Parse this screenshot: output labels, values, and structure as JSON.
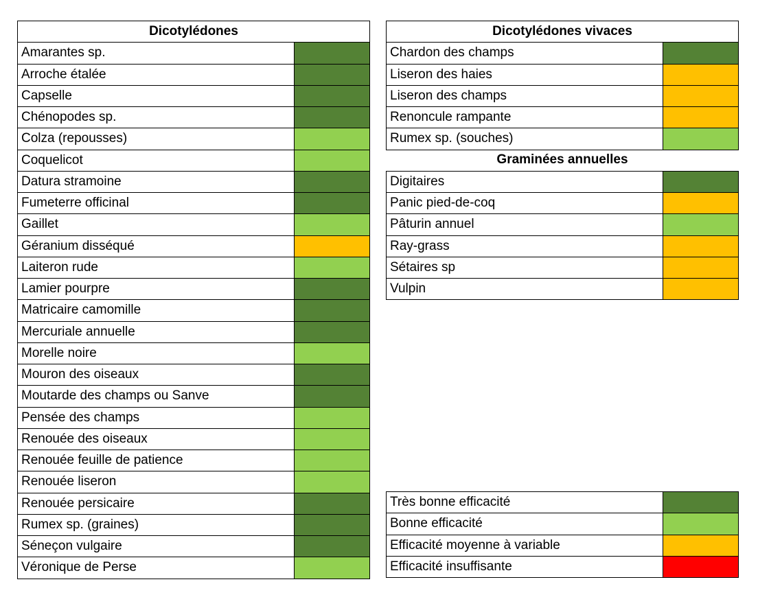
{
  "left": {
    "title": "Dicotylédones",
    "rows": [
      {
        "name": "Amarantes sp.",
        "color": "#548235"
      },
      {
        "name": "Arroche étalée",
        "color": "#548235"
      },
      {
        "name": "Capselle",
        "color": "#548235"
      },
      {
        "name": "Chénopodes sp.",
        "color": "#548235"
      },
      {
        "name": "Colza (repousses)",
        "color": "#92d050"
      },
      {
        "name": "Coquelicot",
        "color": "#92d050"
      },
      {
        "name": "Datura stramoine",
        "color": "#548235"
      },
      {
        "name": "Fumeterre officinal",
        "color": "#548235"
      },
      {
        "name": "Gaillet",
        "color": "#92d050"
      },
      {
        "name": "Géranium disséqué",
        "color": "#ffc000"
      },
      {
        "name": "Laiteron rude",
        "color": "#92d050"
      },
      {
        "name": "Lamier pourpre",
        "color": "#548235"
      },
      {
        "name": "Matricaire camomille",
        "color": "#548235"
      },
      {
        "name": "Mercuriale annuelle",
        "color": "#548235"
      },
      {
        "name": "Morelle noire",
        "color": "#92d050"
      },
      {
        "name": "Mouron des oiseaux",
        "color": "#548235"
      },
      {
        "name": "Moutarde des champs ou Sanve",
        "color": "#548235"
      },
      {
        "name": "Pensée des champs",
        "color": "#92d050"
      },
      {
        "name": "Renouée des oiseaux",
        "color": "#92d050"
      },
      {
        "name": "Renouée feuille de patience",
        "color": "#92d050"
      },
      {
        "name": "Renouée liseron",
        "color": "#92d050"
      },
      {
        "name": "Renouée persicaire",
        "color": "#548235"
      },
      {
        "name": "Rumex sp. (graines)",
        "color": "#548235"
      },
      {
        "name": "Séneçon vulgaire",
        "color": "#548235"
      },
      {
        "name": "Véronique de Perse",
        "color": "#92d050"
      }
    ]
  },
  "right": [
    {
      "title": "Dicotylédones vivaces",
      "rows": [
        {
          "name": "Chardon des champs",
          "color": "#548235"
        },
        {
          "name": "Liseron des haies",
          "color": "#ffc000"
        },
        {
          "name": "Liseron des champs",
          "color": "#ffc000"
        },
        {
          "name": "Renoncule rampante",
          "color": "#ffc000"
        },
        {
          "name": "Rumex sp. (souches)",
          "color": "#92d050"
        }
      ]
    },
    {
      "title": "Graminées annuelles",
      "rows": [
        {
          "name": "Digitaires",
          "color": "#548235"
        },
        {
          "name": "Panic pied-de-coq",
          "color": "#ffc000"
        },
        {
          "name": "Pâturin annuel",
          "color": "#92d050"
        },
        {
          "name": "Ray-grass",
          "color": "#ffc000"
        },
        {
          "name": "Sétaires sp",
          "color": "#ffc000"
        },
        {
          "name": "Vulpin",
          "color": "#ffc000"
        }
      ]
    }
  ],
  "legend": [
    {
      "label": "Très bonne efficacité",
      "color": "#548235"
    },
    {
      "label": "Bonne efficacité",
      "color": "#92d050"
    },
    {
      "label": "Efficacité moyenne à variable",
      "color": "#ffc000"
    },
    {
      "label": "Efficacité insuffisante",
      "color": "#ff0000"
    }
  ]
}
